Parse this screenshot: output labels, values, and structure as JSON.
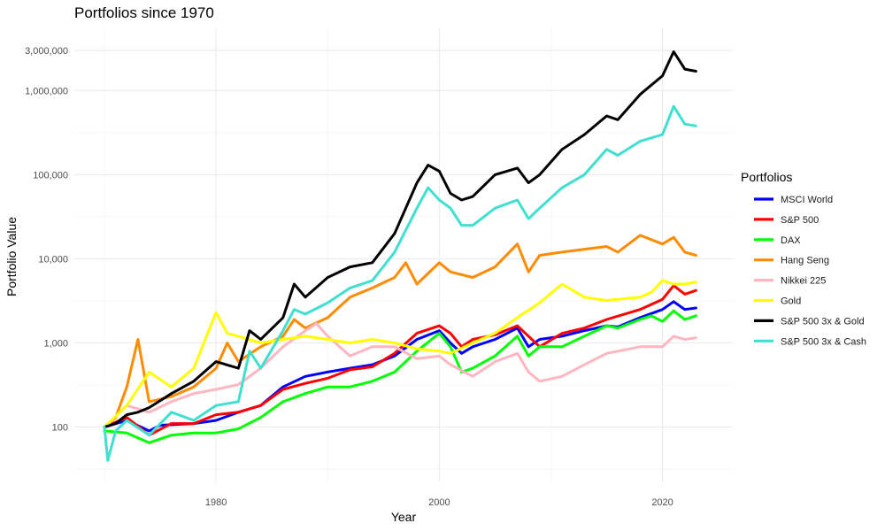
{
  "chart_data": {
    "type": "line",
    "title": "Portfolios since 1970",
    "xlabel": "Year",
    "ylabel": "Portfolio Value",
    "y_scale": "log10",
    "xlim": [
      1967.3,
      2026.3
    ],
    "ylim": [
      22,
      5500000
    ],
    "x_ticks": [
      1980,
      2000,
      2020
    ],
    "x_tick_labels": [
      "1980",
      "2000",
      "2020"
    ],
    "y_ticks": [
      100,
      1000,
      10000,
      100000,
      1000000,
      3000000
    ],
    "y_tick_labels": [
      "100",
      "1,000",
      "10,000",
      "100,000",
      "1,000,000",
      "3,000,000"
    ],
    "grid": true,
    "legend": {
      "title": "Portfolios",
      "position": "right"
    },
    "series": [
      {
        "name": "MSCI World",
        "color": "#0000FF",
        "points": [
          [
            1970,
            100
          ],
          [
            1972,
            120
          ],
          [
            1974,
            90
          ],
          [
            1975,
            105
          ],
          [
            1978,
            110
          ],
          [
            1980,
            120
          ],
          [
            1982,
            150
          ],
          [
            1984,
            180
          ],
          [
            1986,
            300
          ],
          [
            1988,
            400
          ],
          [
            1990,
            450
          ],
          [
            1992,
            500
          ],
          [
            1994,
            550
          ],
          [
            1996,
            700
          ],
          [
            1998,
            1100
          ],
          [
            2000,
            1400
          ],
          [
            2001,
            1000
          ],
          [
            2002,
            750
          ],
          [
            2003,
            900
          ],
          [
            2005,
            1100
          ],
          [
            2007,
            1500
          ],
          [
            2008,
            900
          ],
          [
            2009,
            1100
          ],
          [
            2011,
            1200
          ],
          [
            2013,
            1400
          ],
          [
            2015,
            1600
          ],
          [
            2016,
            1550
          ],
          [
            2018,
            2000
          ],
          [
            2020,
            2500
          ],
          [
            2021,
            3100
          ],
          [
            2022,
            2500
          ],
          [
            2023,
            2600
          ]
        ]
      },
      {
        "name": "S&P 500",
        "color": "#FF0000",
        "points": [
          [
            1970,
            100
          ],
          [
            1972,
            130
          ],
          [
            1974,
            80
          ],
          [
            1976,
            110
          ],
          [
            1978,
            110
          ],
          [
            1980,
            140
          ],
          [
            1982,
            150
          ],
          [
            1984,
            180
          ],
          [
            1986,
            280
          ],
          [
            1988,
            330
          ],
          [
            1990,
            380
          ],
          [
            1992,
            480
          ],
          [
            1994,
            520
          ],
          [
            1996,
            750
          ],
          [
            1998,
            1300
          ],
          [
            2000,
            1600
          ],
          [
            2001,
            1300
          ],
          [
            2002,
            900
          ],
          [
            2003,
            1100
          ],
          [
            2005,
            1250
          ],
          [
            2007,
            1600
          ],
          [
            2009,
            900
          ],
          [
            2011,
            1300
          ],
          [
            2013,
            1500
          ],
          [
            2015,
            1900
          ],
          [
            2018,
            2500
          ],
          [
            2020,
            3300
          ],
          [
            2021,
            4800
          ],
          [
            2022,
            3800
          ],
          [
            2023,
            4200
          ]
        ]
      },
      {
        "name": "DAX",
        "color": "#00FF00",
        "points": [
          [
            1970,
            90
          ],
          [
            1972,
            85
          ],
          [
            1974,
            65
          ],
          [
            1976,
            80
          ],
          [
            1978,
            85
          ],
          [
            1980,
            85
          ],
          [
            1982,
            95
          ],
          [
            1984,
            130
          ],
          [
            1986,
            200
          ],
          [
            1988,
            250
          ],
          [
            1990,
            300
          ],
          [
            1992,
            300
          ],
          [
            1994,
            350
          ],
          [
            1996,
            450
          ],
          [
            1998,
            800
          ],
          [
            2000,
            1300
          ],
          [
            2001,
            900
          ],
          [
            2002,
            450
          ],
          [
            2003,
            500
          ],
          [
            2005,
            700
          ],
          [
            2007,
            1200
          ],
          [
            2008,
            700
          ],
          [
            2009,
            900
          ],
          [
            2011,
            900
          ],
          [
            2013,
            1200
          ],
          [
            2015,
            1600
          ],
          [
            2016,
            1500
          ],
          [
            2018,
            1900
          ],
          [
            2019,
            2100
          ],
          [
            2020,
            1800
          ],
          [
            2021,
            2400
          ],
          [
            2022,
            1900
          ],
          [
            2023,
            2100
          ]
        ]
      },
      {
        "name": "Hang Seng",
        "color": "#FF8C00",
        "points": [
          [
            1970,
            100
          ],
          [
            1971,
            130
          ],
          [
            1972,
            300
          ],
          [
            1973,
            1100
          ],
          [
            1974,
            200
          ],
          [
            1976,
            230
          ],
          [
            1978,
            300
          ],
          [
            1980,
            500
          ],
          [
            1981,
            1000
          ],
          [
            1982,
            600
          ],
          [
            1984,
            900
          ],
          [
            1986,
            1200
          ],
          [
            1987,
            1900
          ],
          [
            1988,
            1500
          ],
          [
            1990,
            2000
          ],
          [
            1992,
            3500
          ],
          [
            1994,
            4500
          ],
          [
            1996,
            6000
          ],
          [
            1997,
            9000
          ],
          [
            1998,
            5000
          ],
          [
            2000,
            9000
          ],
          [
            2001,
            7000
          ],
          [
            2003,
            6000
          ],
          [
            2005,
            8000
          ],
          [
            2007,
            15000
          ],
          [
            2008,
            7000
          ],
          [
            2009,
            11000
          ],
          [
            2011,
            12000
          ],
          [
            2013,
            13000
          ],
          [
            2015,
            14000
          ],
          [
            2016,
            12000
          ],
          [
            2018,
            19000
          ],
          [
            2020,
            15000
          ],
          [
            2021,
            18000
          ],
          [
            2022,
            12000
          ],
          [
            2023,
            11000
          ]
        ]
      },
      {
        "name": "Nikkei 225",
        "color": "#FFB6C1",
        "points": [
          [
            1970,
            100
          ],
          [
            1972,
            180
          ],
          [
            1974,
            150
          ],
          [
            1976,
            200
          ],
          [
            1978,
            250
          ],
          [
            1980,
            280
          ],
          [
            1982,
            320
          ],
          [
            1984,
            500
          ],
          [
            1986,
            900
          ],
          [
            1988,
            1400
          ],
          [
            1989,
            1700
          ],
          [
            1990,
            1200
          ],
          [
            1992,
            700
          ],
          [
            1994,
            900
          ],
          [
            1996,
            900
          ],
          [
            1998,
            650
          ],
          [
            2000,
            700
          ],
          [
            2001,
            550
          ],
          [
            2003,
            400
          ],
          [
            2005,
            600
          ],
          [
            2007,
            750
          ],
          [
            2008,
            450
          ],
          [
            2009,
            350
          ],
          [
            2011,
            400
          ],
          [
            2013,
            550
          ],
          [
            2015,
            750
          ],
          [
            2018,
            900
          ],
          [
            2020,
            900
          ],
          [
            2021,
            1200
          ],
          [
            2022,
            1100
          ],
          [
            2023,
            1150
          ]
        ]
      },
      {
        "name": "Gold",
        "color": "#FFFF00",
        "points": [
          [
            1970,
            100
          ],
          [
            1972,
            180
          ],
          [
            1974,
            450
          ],
          [
            1976,
            300
          ],
          [
            1978,
            500
          ],
          [
            1980,
            2300
          ],
          [
            1981,
            1300
          ],
          [
            1982,
            1200
          ],
          [
            1984,
            1000
          ],
          [
            1986,
            1100
          ],
          [
            1988,
            1200
          ],
          [
            1990,
            1100
          ],
          [
            1992,
            1000
          ],
          [
            1994,
            1100
          ],
          [
            1996,
            1000
          ],
          [
            1998,
            850
          ],
          [
            2000,
            800
          ],
          [
            2001,
            750
          ],
          [
            2003,
            1000
          ],
          [
            2005,
            1300
          ],
          [
            2007,
            2000
          ],
          [
            2009,
            3000
          ],
          [
            2011,
            5000
          ],
          [
            2013,
            3500
          ],
          [
            2015,
            3200
          ],
          [
            2018,
            3500
          ],
          [
            2019,
            4000
          ],
          [
            2020,
            5500
          ],
          [
            2021,
            5000
          ],
          [
            2022,
            5000
          ],
          [
            2023,
            5300
          ]
        ]
      },
      {
        "name": "S&P 500 3x & Gold",
        "color": "#000000",
        "points": [
          [
            1970,
            100
          ],
          [
            1971,
            110
          ],
          [
            1972,
            140
          ],
          [
            1973,
            150
          ],
          [
            1974,
            170
          ],
          [
            1976,
            250
          ],
          [
            1978,
            350
          ],
          [
            1980,
            600
          ],
          [
            1982,
            500
          ],
          [
            1983,
            1400
          ],
          [
            1984,
            1100
          ],
          [
            1986,
            2000
          ],
          [
            1987,
            5000
          ],
          [
            1988,
            3500
          ],
          [
            1990,
            6000
          ],
          [
            1992,
            8000
          ],
          [
            1994,
            9000
          ],
          [
            1996,
            20000
          ],
          [
            1998,
            80000
          ],
          [
            1999,
            130000
          ],
          [
            2000,
            110000
          ],
          [
            2001,
            60000
          ],
          [
            2002,
            50000
          ],
          [
            2003,
            55000
          ],
          [
            2005,
            100000
          ],
          [
            2007,
            120000
          ],
          [
            2008,
            80000
          ],
          [
            2009,
            100000
          ],
          [
            2011,
            200000
          ],
          [
            2013,
            300000
          ],
          [
            2015,
            500000
          ],
          [
            2016,
            450000
          ],
          [
            2018,
            900000
          ],
          [
            2020,
            1500000
          ],
          [
            2021,
            2900000
          ],
          [
            2022,
            1800000
          ],
          [
            2023,
            1700000
          ]
        ]
      },
      {
        "name": "S&P 500 3x & Cash",
        "color": "#40E0D0",
        "points": [
          [
            1970,
            100
          ],
          [
            1970.3,
            40
          ],
          [
            1971,
            90
          ],
          [
            1972,
            120
          ],
          [
            1974,
            80
          ],
          [
            1976,
            150
          ],
          [
            1978,
            120
          ],
          [
            1980,
            180
          ],
          [
            1982,
            200
          ],
          [
            1983,
            800
          ],
          [
            1984,
            500
          ],
          [
            1986,
            1400
          ],
          [
            1987,
            2500
          ],
          [
            1988,
            2200
          ],
          [
            1990,
            3000
          ],
          [
            1992,
            4500
          ],
          [
            1994,
            5500
          ],
          [
            1996,
            12000
          ],
          [
            1998,
            40000
          ],
          [
            1999,
            70000
          ],
          [
            2000,
            50000
          ],
          [
            2001,
            40000
          ],
          [
            2002,
            25000
          ],
          [
            2003,
            25000
          ],
          [
            2005,
            40000
          ],
          [
            2007,
            50000
          ],
          [
            2008,
            30000
          ],
          [
            2009,
            40000
          ],
          [
            2011,
            70000
          ],
          [
            2013,
            100000
          ],
          [
            2015,
            200000
          ],
          [
            2016,
            170000
          ],
          [
            2018,
            250000
          ],
          [
            2020,
            300000
          ],
          [
            2021,
            650000
          ],
          [
            2022,
            400000
          ],
          [
            2023,
            380000
          ]
        ]
      }
    ]
  }
}
